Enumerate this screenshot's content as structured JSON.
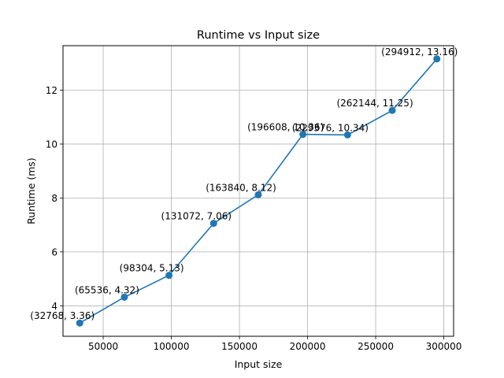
{
  "chart_data": {
    "type": "line",
    "title": "Runtime vs Input size",
    "xlabel": "Input size",
    "ylabel": "Runtime (ms)",
    "xlim": [
      20480,
      307200
    ],
    "ylim": [
      2.87,
      13.65
    ],
    "xticks": [
      50000,
      100000,
      150000,
      200000,
      250000,
      300000
    ],
    "yticks": [
      4,
      6,
      8,
      10,
      12
    ],
    "grid": true,
    "series": [
      {
        "color": "#1f77b4",
        "marker": "circle",
        "x": [
          32768,
          65536,
          98304,
          131072,
          163840,
          196608,
          229376,
          262144,
          294912
        ],
        "y": [
          3.36,
          4.32,
          5.13,
          7.06,
          8.12,
          10.36,
          10.34,
          11.25,
          13.16
        ]
      }
    ],
    "point_labels": [
      "(32768, 3.36)",
      "(65536, 4.32)",
      "(98304, 5.13)",
      "(131072, 7.06)",
      "(163840, 8.12)",
      "(196608, 10.36)",
      "(229376, 10.34)",
      "(262144, 11.25)",
      "(294912, 13.16)"
    ]
  }
}
